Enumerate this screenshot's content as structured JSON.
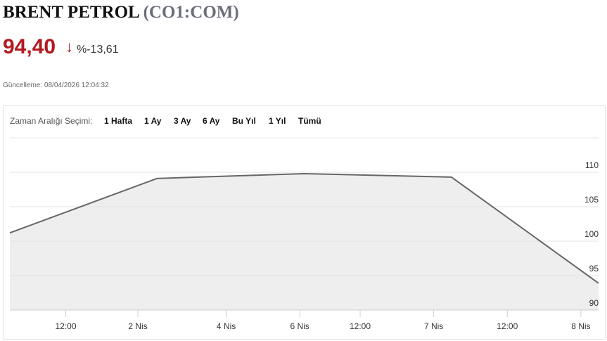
{
  "header": {
    "title": "BRENT PETROL",
    "symbol": "(CO1:COM)",
    "price": "94,40",
    "arrow": "↓",
    "change": "%-13,61",
    "updated": "Güncelleme: 08/04/2026 12:04:32"
  },
  "range_selector": {
    "label": "Zaman Aralığı Seçimi:",
    "options": [
      "1 Hafta",
      "1 Ay",
      "3 Ay",
      "6 Ay",
      "Bu Yıl",
      "1 Yıl",
      "Tümü"
    ]
  },
  "chart_data": {
    "type": "area",
    "x": [
      0,
      1,
      2,
      3,
      4
    ],
    "values": [
      101.2,
      109.1,
      109.8,
      109.3,
      93.9
    ],
    "color": "#666666",
    "fill": "#eeeeee",
    "xlim": [
      0,
      4
    ],
    "ylim": [
      90,
      115
    ],
    "yticks": [
      90,
      95,
      100,
      105,
      110
    ],
    "xticks": [
      {
        "value": 0.38,
        "label": "12:00"
      },
      {
        "value": 0.87,
        "label": "2 Nis"
      },
      {
        "value": 1.47,
        "label": "4 Nis"
      },
      {
        "value": 1.97,
        "label": "6 Nis"
      },
      {
        "value": 2.38,
        "label": "12:00"
      },
      {
        "value": 2.88,
        "label": "7 Nis"
      },
      {
        "value": 3.38,
        "label": "12:00"
      },
      {
        "value": 3.88,
        "label": "8 Nis"
      }
    ],
    "grid": true
  }
}
